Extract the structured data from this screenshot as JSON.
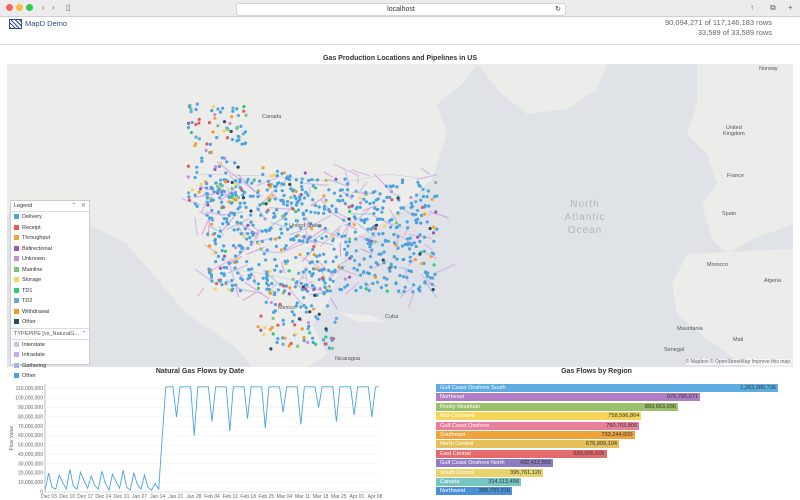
{
  "browser": {
    "url": "localhost",
    "traffic_colors": [
      "#fc605c",
      "#fdbc40",
      "#34c84a"
    ]
  },
  "header": {
    "app_name": "MapD Demo",
    "row_count_1": "90,094,271 of 117,146,183 rows",
    "row_count_2": "33,589 of 33,589 rows"
  },
  "map_panel": {
    "title": "Gas Production Locations and Pipelines in US",
    "labels": {
      "canada": "Canada",
      "united_states": "United States",
      "mexico": "Mexico",
      "cuba": "Cuba",
      "north_atlantic": "North\nAtlantic\nOcean",
      "norway": "Norway",
      "united_kingdom": "United\nKingdom",
      "france": "France",
      "spain": "Spain",
      "morocco": "Morocco",
      "algeria": "Algeria",
      "mauritania": "Mauritania",
      "mali": "Mali",
      "senegal": "Senegal",
      "nicaragua": "Nicaragua"
    },
    "attribution": "© Mapbox  © OpenStreetMap  Improve this map",
    "legend": {
      "title": "Legend",
      "items": [
        {
          "label": "Delivery",
          "color": "#4aa3df"
        },
        {
          "label": "Receipt",
          "color": "#e05b5b"
        },
        {
          "label": "Throughput",
          "color": "#f0a33b"
        },
        {
          "label": "Bidirectional",
          "color": "#9b59b6"
        },
        {
          "label": "Unknown",
          "color": "#c38fd8"
        },
        {
          "label": "Mainline",
          "color": "#7bc67b"
        },
        {
          "label": "Storage",
          "color": "#f5d55a"
        },
        {
          "label": "TD1",
          "color": "#2ecc71"
        },
        {
          "label": "TD2",
          "color": "#5dade2"
        },
        {
          "label": "Withdrawal",
          "color": "#f39c12"
        },
        {
          "label": "Other",
          "color": "#34495e"
        }
      ],
      "sub_title": "TYPEPIPE [vs_NaturalG...",
      "sub_items": [
        {
          "label": "Interstate",
          "color": "#e0b8e8"
        },
        {
          "label": "Intrastate",
          "color": "#c7a8ef"
        },
        {
          "label": "Gathering",
          "color": "#9fb6e0"
        },
        {
          "label": "Other",
          "color": "#4aa3df"
        }
      ]
    }
  },
  "line_panel": {
    "title": "Natural Gas Flows by Date",
    "chart_data": {
      "type": "line",
      "title": "Natural Gas Flows by Date",
      "ylabel": "Flow Value",
      "xlabel": "",
      "ylim": [
        0,
        115000000
      ],
      "y_ticks": [
        "0",
        "10,000,000",
        "20,000,000",
        "30,000,000",
        "40,000,000",
        "50,000,000",
        "60,000,000",
        "70,000,000",
        "80,000,000",
        "90,000,000",
        "100,000,000",
        "110,000,000"
      ],
      "x_ticks": [
        "Dec 03",
        "Dec 10",
        "Dec 17",
        "Dec 24",
        "Dec 31",
        "Jan 07",
        "Jan 14",
        "Jan 21",
        "Jan 28",
        "Feb 04",
        "Feb 11",
        "Feb 18",
        "Feb 25",
        "Mar 04",
        "Mar 11",
        "Mar 18",
        "Mar 25",
        "Apr 01",
        "Apr 08"
      ],
      "series": [
        {
          "values": [
            2000000,
            20000000,
            5000000,
            3000000,
            18000000,
            10000000,
            3000000,
            24000000,
            6000000,
            3000000,
            21000000,
            12000000,
            4000000,
            17000000,
            7000000,
            3000000,
            22000000,
            9000000,
            2000000,
            19000000,
            11000000,
            4000000,
            23000000,
            5000000,
            2000000,
            20000000,
            8000000,
            3000000,
            18000000,
            5000000,
            2000000,
            9000000,
            3000000,
            60000000,
            112000000,
            112000000,
            112000000,
            80000000,
            112000000,
            112000000,
            112000000,
            112000000,
            60000000,
            112000000,
            112000000,
            112000000,
            112000000,
            75000000,
            112000000,
            112000000,
            112000000,
            112000000,
            65000000,
            112000000,
            112000000,
            112000000,
            112000000,
            78000000,
            112000000,
            112000000,
            112000000,
            112000000,
            68000000,
            112000000,
            112000000,
            112000000,
            112000000,
            85000000,
            112000000,
            112000000,
            112000000,
            112000000,
            72000000,
            112000000,
            112000000,
            112000000,
            112000000,
            90000000,
            112000000,
            112000000,
            112000000,
            112000000,
            75000000,
            112000000,
            112000000,
            112000000,
            112000000,
            82000000,
            112000000,
            112000000,
            112000000,
            112000000,
            80000000,
            112000000,
            112000000
          ]
        }
      ],
      "color": "#4aa3df"
    }
  },
  "bar_panel": {
    "title": "Gas Flows by Region",
    "chart_data": {
      "type": "bar",
      "title": "Gas Flows by Region",
      "xlim": [
        0,
        1263280736
      ],
      "categories": [
        "Gulf Coast Onshore South",
        "Northeast",
        "Rocky Mountain",
        "Mid-Continent",
        "Gulf Coast Onshore",
        "Southeast",
        "North Central",
        "East Central",
        "Gulf Coast Onshore North",
        "South Central",
        "Canada",
        "Northwest"
      ],
      "values": [
        1263280736,
        975766671,
        893663936,
        758596864,
        750765806,
        733244600,
        675999104,
        630005605,
        432412855,
        395761120,
        314113456,
        280737216
      ],
      "value_labels": [
        "1,263,280,736",
        "975,766,671",
        "893,663,936",
        "758,596,864",
        "750,765,806",
        "733,244,600",
        "675,999,104",
        "630,005,605",
        "432,412,855",
        "395,761,120",
        "314,113,456",
        "280,737,216"
      ],
      "colors": [
        "#5dade2",
        "#b07cc6",
        "#9cbf6b",
        "#f5d55a",
        "#e87f9c",
        "#f0a33b",
        "#e5c05a",
        "#e46b6b",
        "#8e7cc3",
        "#e8d46b",
        "#76c5c5",
        "#4a90d9"
      ]
    }
  }
}
